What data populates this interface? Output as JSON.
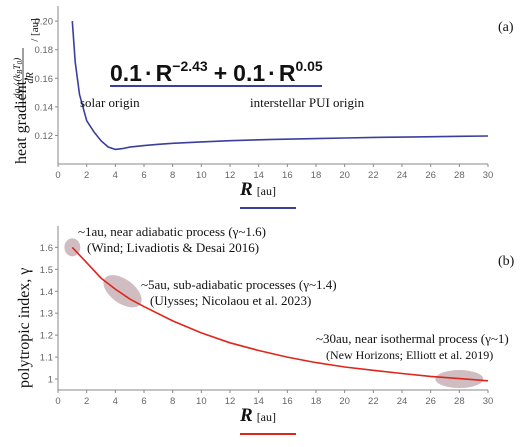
{
  "chart_data": [
    {
      "type": "line",
      "panel_label": "(a)",
      "y_label": "heat gradient,",
      "y_fraction": {
        "numerator": "dq / (k",
        "sub_b": "B",
        "mid": "T",
        "sub_0": "0",
        "close": ")",
        "denominator": "dR",
        "unit": "/ [au]"
      },
      "x_label": "R",
      "x_unit": "[au]",
      "formula": {
        "coef1": "0.1",
        "dot": "·",
        "base1": "R",
        "exp1": "−2.43",
        "plus": "+",
        "coef2": "0.1",
        "base2": "R",
        "exp2": "0.05"
      },
      "annotations": [
        "solar origin",
        "interstellar PUI origin"
      ],
      "x_ticks": [
        "0",
        "2",
        "4",
        "6",
        "8",
        "10",
        "12",
        "14",
        "16",
        "18",
        "20",
        "22",
        "24",
        "26",
        "28",
        "30"
      ],
      "y_ticks": [
        "0.12",
        "0.14",
        "0.16",
        "0.18",
        "0.20"
      ],
      "xlim": [
        0,
        30
      ],
      "ylim": [
        0.1,
        0.205
      ],
      "series": [
        {
          "color": "#3b3f9c",
          "x": [
            1,
            1.2,
            1.5,
            2,
            2.5,
            3,
            3.5,
            4,
            4.5,
            5,
            6,
            7,
            8,
            10,
            12,
            15,
            18,
            20,
            22,
            25,
            28,
            30
          ],
          "y": [
            0.2,
            0.1715,
            0.1487,
            0.1303,
            0.1226,
            0.1163,
            0.1119,
            0.1102,
            0.1108,
            0.1118,
            0.1129,
            0.1138,
            0.1145,
            0.1155,
            0.1163,
            0.1172,
            0.1178,
            0.1182,
            0.1186,
            0.119,
            0.1194,
            0.1196
          ]
        }
      ]
    },
    {
      "type": "line",
      "panel_label": "(b)",
      "y_label": "polytropic index, γ",
      "x_label": "R",
      "x_unit": "[au]",
      "x_ticks": [
        "0",
        "2",
        "4",
        "6",
        "8",
        "10",
        "12",
        "14",
        "16",
        "18",
        "20",
        "22",
        "24",
        "26",
        "28",
        "30"
      ],
      "y_ticks": [
        "1",
        "1.1",
        "1.2",
        "1.3",
        "1.4",
        "1.5",
        "1.6"
      ],
      "xlim": [
        0,
        30
      ],
      "ylim": [
        0.95,
        1.67
      ],
      "series": [
        {
          "color": "#e0251b",
          "x": [
            1,
            2,
            3,
            4,
            5,
            6,
            8,
            10,
            12,
            14,
            16,
            18,
            20,
            22,
            24,
            26,
            28,
            30
          ],
          "y": [
            1.6,
            1.53,
            1.46,
            1.41,
            1.365,
            1.33,
            1.265,
            1.21,
            1.165,
            1.13,
            1.1,
            1.075,
            1.055,
            1.04,
            1.025,
            1.012,
            1.002,
            0.992
          ]
        }
      ],
      "regions": [
        {
          "line1": "~1au, near adiabatic process (γ~1.6)",
          "line2": "(Wind; Livadiotis & Desai 2016)",
          "cx": 1,
          "cy": 1.6
        },
        {
          "line1": "~5au, sub-adiabatic processes (γ~1.4)",
          "line2": "(Ulysses; Nicolaou et al. 2023)",
          "cx": 4.5,
          "cy": 1.4
        },
        {
          "line1": "~30au, near isothermal process (γ~1)",
          "line2": "(New Horizons; Elliott et al. 2019)",
          "cx": 28,
          "cy": 1.0
        }
      ]
    }
  ]
}
